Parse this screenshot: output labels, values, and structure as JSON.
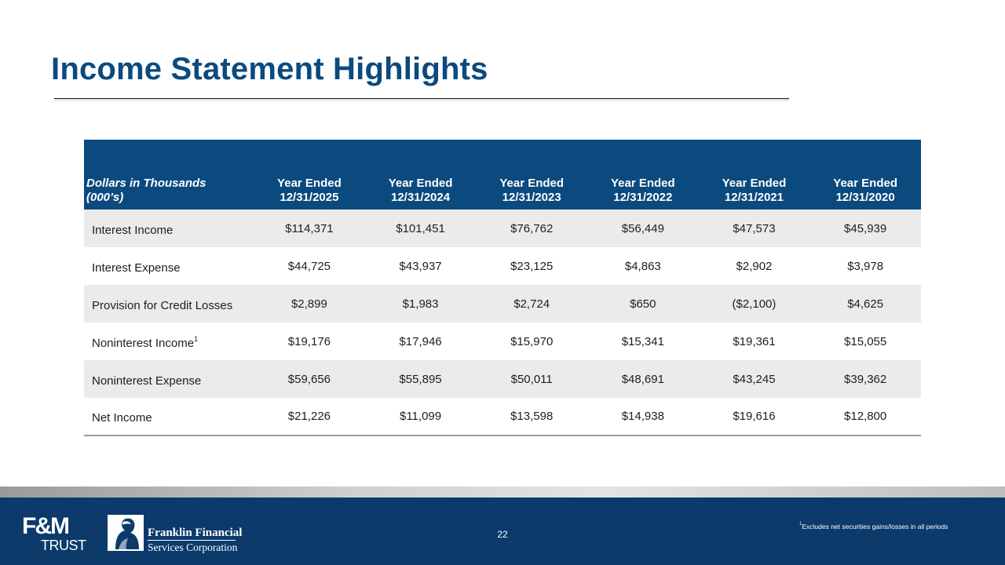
{
  "slide": {
    "title": "Income Statement Highlights",
    "page_number": "22"
  },
  "table": {
    "label_header_line1": "Dollars in Thousands",
    "label_header_line2": "(000’s)",
    "columns": [
      {
        "line1": "Year Ended",
        "line2": "12/31/2025"
      },
      {
        "line1": "Year Ended",
        "line2": "12/31/2024"
      },
      {
        "line1": "Year Ended",
        "line2": "12/31/2023"
      },
      {
        "line1": "Year Ended",
        "line2": "12/31/2022"
      },
      {
        "line1": "Year Ended",
        "line2": "12/31/2021"
      },
      {
        "line1": "Year Ended",
        "line2": "12/31/2020"
      }
    ],
    "rows": [
      {
        "label": "Interest Income",
        "sup": "",
        "values": [
          "$114,371",
          "$101,451",
          "$76,762",
          "$56,449",
          "$47,573",
          "$45,939"
        ]
      },
      {
        "label": "Interest Expense",
        "sup": "",
        "values": [
          "$44,725",
          "$43,937",
          "$23,125",
          "$4,863",
          "$2,902",
          "$3,978"
        ]
      },
      {
        "label": "Provision for Credit Losses",
        "sup": "",
        "values": [
          "$2,899",
          "$1,983",
          "$2,724",
          "$650",
          "($2,100)",
          "$4,625"
        ]
      },
      {
        "label": "Noninterest Income",
        "sup": "1",
        "values": [
          "$19,176",
          "$17,946",
          "$15,970",
          "$15,341",
          "$19,361",
          "$15,055"
        ]
      },
      {
        "label": "Noninterest Expense",
        "sup": "",
        "values": [
          "$59,656",
          "$55,895",
          "$50,011",
          "$48,691",
          "$43,245",
          "$39,362"
        ]
      },
      {
        "label": "Net Income",
        "sup": "",
        "values": [
          "$21,226",
          "$11,099",
          "$13,598",
          "$14,938",
          "$19,616",
          "$12,800"
        ]
      }
    ]
  },
  "footer": {
    "footnote_marker": "1",
    "footnote_text": "Excludes net securities gains/losses in all periods",
    "logo_fm_top": "F&M",
    "logo_fm_bottom": "TRUST",
    "logo_ffsc_line1": "Franklin Financial",
    "logo_ffsc_line2": "Services Corporation"
  },
  "colors": {
    "brand_blue": "#0b4a7e",
    "footer_blue": "#0b3a6b",
    "row_shade": "#ebebeb"
  }
}
